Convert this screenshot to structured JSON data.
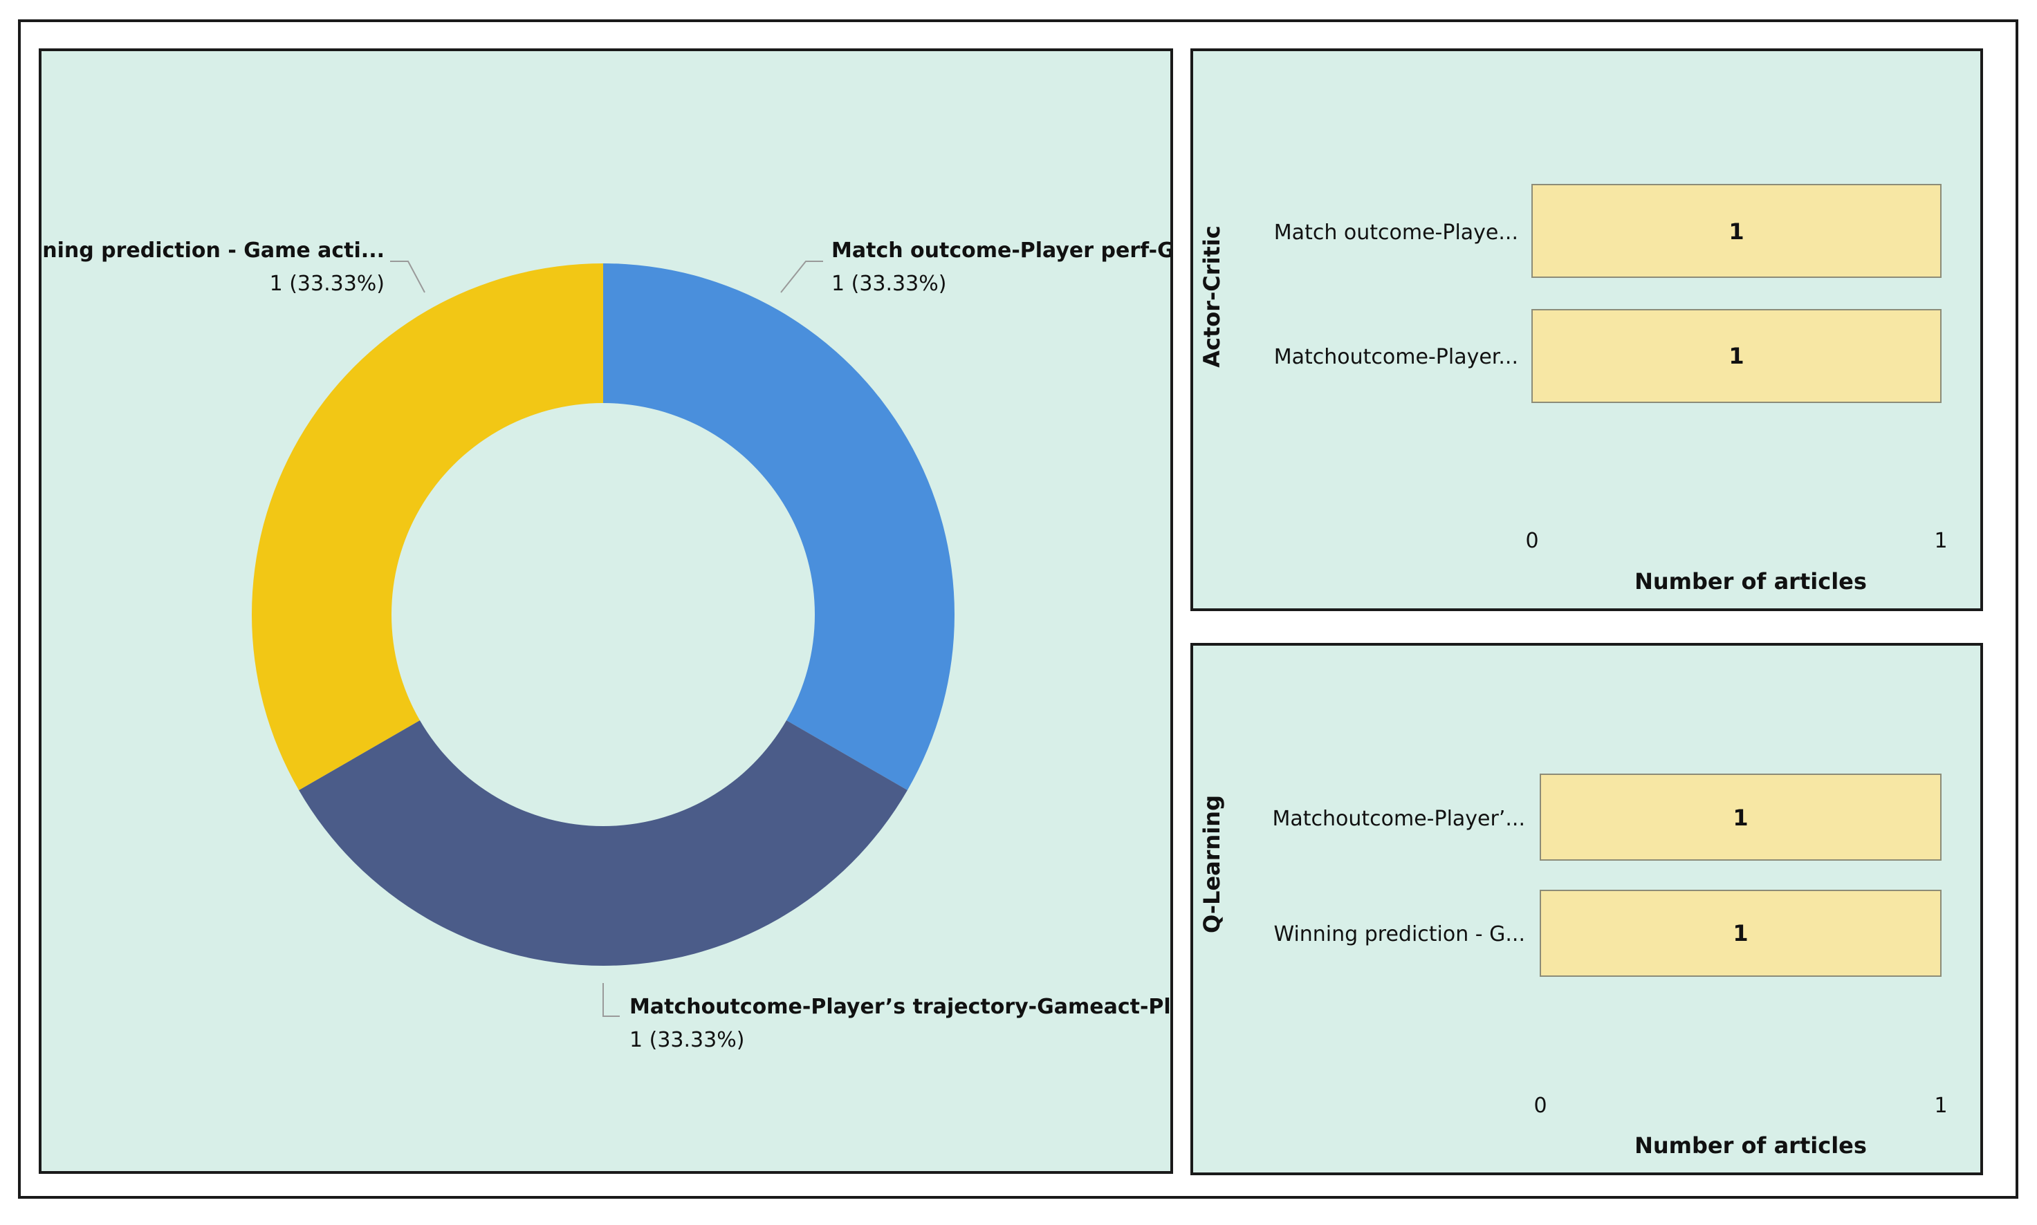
{
  "colors": {
    "panel_bg": "#d8efe8",
    "border": "#1a1a1a",
    "bar_fill": "#f7e7a4",
    "bar_stroke": "#8c8c78"
  },
  "chart_data": [
    {
      "type": "pie",
      "style": "donut",
      "slices": [
        {
          "label": "Match outcome-Player perf-Ga...",
          "value": 1,
          "value_label": "1 (33.33%)",
          "color": "#4a8fdc"
        },
        {
          "label": "Matchoutcome-Player’s trajectory-Gameact-Player...",
          "value": 1,
          "value_label": "1 (33.33%)",
          "color": "#4b5c89"
        },
        {
          "label": "Winning prediction - Game acti...",
          "value": 1,
          "value_label": "1 (33.33%)",
          "color": "#f2c715"
        }
      ]
    },
    {
      "type": "bar",
      "orientation": "horizontal",
      "group_label": "Actor-Critic",
      "categories": [
        "Match outcome-Playe...",
        "Matchoutcome-Player..."
      ],
      "values": [
        1,
        1
      ],
      "data_labels": [
        "1",
        "1"
      ],
      "xlabel": "Number of articles",
      "xlim": [
        0,
        1
      ],
      "xticks": [
        "0",
        "1"
      ]
    },
    {
      "type": "bar",
      "orientation": "horizontal",
      "group_label": "Q-Learning",
      "categories": [
        "Matchoutcome-Player’...",
        "Winning prediction - G..."
      ],
      "values": [
        1,
        1
      ],
      "data_labels": [
        "1",
        "1"
      ],
      "xlabel": "Number of articles",
      "xlim": [
        0,
        1
      ],
      "xticks": [
        "0",
        "1"
      ]
    }
  ]
}
